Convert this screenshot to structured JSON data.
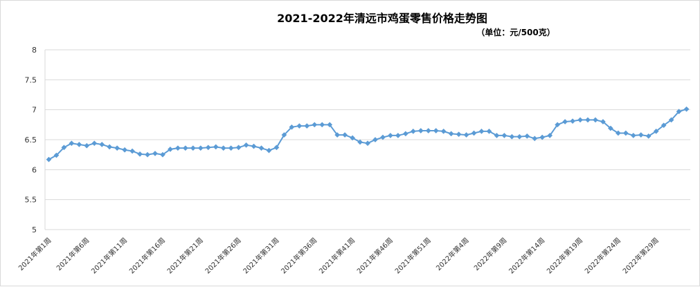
{
  "chart_data": {
    "type": "line",
    "title": "2021-2022年清远市鸡蛋零售价格走势图",
    "subtitle": "（单位：元/500克）",
    "xlabel": "",
    "ylabel": "",
    "ylim": [
      5,
      8
    ],
    "yticks": [
      "5",
      "5.5",
      "6",
      "6.5",
      "7",
      "7.5",
      "8"
    ],
    "grid": true,
    "legend": "none",
    "x_labels_shown": [
      "2021年第1周",
      "2021年第6周",
      "2021年第11周",
      "2021年第16周",
      "2021年第21周",
      "2021年第26周",
      "2021年第31周",
      "2021年第36周",
      "2021年第41周",
      "2021年第46周",
      "2021年第51周",
      "2022年第4周",
      "2022年第9周",
      "2022年第14周",
      "2022年第19周",
      "2022年第24周",
      "2022年第29周"
    ],
    "series": [
      {
        "name": "",
        "color": "#5B9BD5",
        "values": [
          6.17,
          6.24,
          6.37,
          6.44,
          6.42,
          6.4,
          6.44,
          6.42,
          6.38,
          6.36,
          6.33,
          6.31,
          6.26,
          6.25,
          6.27,
          6.25,
          6.34,
          6.36,
          6.36,
          6.36,
          6.36,
          6.37,
          6.38,
          6.36,
          6.36,
          6.37,
          6.41,
          6.39,
          6.36,
          6.32,
          6.37,
          6.58,
          6.71,
          6.73,
          6.73,
          6.75,
          6.75,
          6.75,
          6.58,
          6.58,
          6.53,
          6.46,
          6.44,
          6.5,
          6.54,
          6.57,
          6.57,
          6.6,
          6.64,
          6.65,
          6.65,
          6.65,
          6.64,
          6.6,
          6.59,
          6.58,
          6.61,
          6.64,
          6.64,
          6.57,
          6.57,
          6.55,
          6.55,
          6.56,
          6.52,
          6.54,
          6.57,
          6.75,
          6.8,
          6.81,
          6.83,
          6.83,
          6.83,
          6.8,
          6.69,
          6.61,
          6.61,
          6.57,
          6.58,
          6.56,
          6.64,
          6.74,
          6.83,
          6.97,
          7.01
        ]
      }
    ]
  }
}
